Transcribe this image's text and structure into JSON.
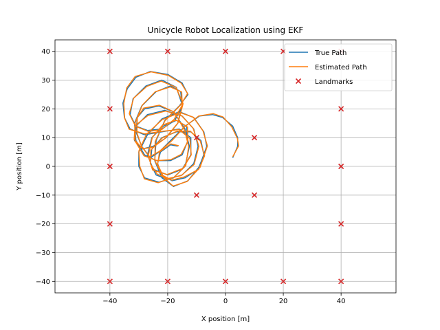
{
  "chart_data": {
    "type": "line",
    "title": "Unicycle Robot Localization using EKF",
    "xlabel": "X position [m]",
    "ylabel": "Y position [m]",
    "xlim": [
      -59,
      59
    ],
    "ylim": [
      -44,
      44
    ],
    "xticks": [
      -40,
      -20,
      0,
      20,
      40
    ],
    "yticks": [
      -40,
      -30,
      -20,
      -10,
      0,
      10,
      20,
      30,
      40
    ],
    "grid": true,
    "legend_position": "top-right",
    "colors": {
      "true_path": "#1f77b4",
      "estimated_path": "#ff7f0e",
      "landmarks": "#d62728"
    },
    "series": [
      {
        "name": "True Path",
        "kind": "line",
        "start": [
          2.5,
          3
        ],
        "approx_trajectory": [
          [
            2.5,
            3
          ],
          [
            4.2,
            7
          ],
          [
            4.2,
            10
          ],
          [
            2.5,
            14
          ],
          [
            -1,
            17
          ],
          [
            -4.5,
            18
          ],
          [
            -9,
            17.5
          ],
          [
            -14,
            14
          ],
          [
            -19,
            9
          ],
          [
            -23,
            5
          ],
          [
            -26,
            3
          ],
          [
            -29,
            7
          ],
          [
            -31,
            12
          ],
          [
            -30.5,
            17
          ],
          [
            -28,
            20
          ],
          [
            -23,
            21
          ],
          [
            -18,
            19
          ],
          [
            -14,
            13
          ],
          [
            -12.5,
            7
          ],
          [
            -14,
            0
          ],
          [
            -18,
            -4
          ],
          [
            -23,
            -5.5
          ],
          [
            -28,
            -4
          ],
          [
            -30,
            0
          ],
          [
            -30,
            5
          ],
          [
            -27,
            11
          ],
          [
            -22,
            16.5
          ],
          [
            -16,
            19
          ],
          [
            -11,
            17
          ],
          [
            -7.5,
            12
          ],
          [
            -6.5,
            7
          ],
          [
            -9,
            0
          ],
          [
            -13,
            -5
          ],
          [
            -18,
            -7
          ],
          [
            -22,
            -4
          ],
          [
            -24.5,
            2
          ],
          [
            -24,
            9
          ],
          [
            -21,
            16
          ],
          [
            -16,
            21
          ],
          [
            -13,
            25
          ],
          [
            -15,
            29
          ],
          [
            -20,
            32
          ],
          [
            -26,
            33
          ],
          [
            -31,
            31
          ],
          [
            -34,
            27
          ],
          [
            -35.5,
            22
          ],
          [
            -35,
            17
          ],
          [
            -33,
            13
          ],
          [
            -28,
            11
          ],
          [
            -22,
            12
          ],
          [
            -16,
            13
          ],
          [
            -12,
            10
          ],
          [
            -12,
            4
          ],
          [
            -15,
            -1
          ],
          [
            -20,
            -3
          ],
          [
            -25,
            -1
          ],
          [
            -27,
            4
          ],
          [
            -25.5,
            10
          ],
          [
            -21.5,
            14
          ],
          [
            -17,
            16
          ],
          [
            -13.5,
            14
          ],
          [
            -13,
            9
          ],
          [
            -15,
            4
          ],
          [
            -19,
            2
          ],
          [
            -24,
            2
          ],
          [
            -28,
            4
          ],
          [
            -31,
            9
          ],
          [
            -31.5,
            15
          ],
          [
            -29,
            21
          ],
          [
            -24,
            26
          ],
          [
            -19,
            28
          ],
          [
            -15.5,
            26
          ],
          [
            -15,
            21
          ],
          [
            -17.5,
            16
          ],
          [
            -22,
            13
          ],
          [
            -27,
            12.5
          ],
          [
            -31,
            14
          ],
          [
            -33,
            18
          ],
          [
            -32,
            23.5
          ],
          [
            -27.5,
            28
          ],
          [
            -22,
            30
          ],
          [
            -17,
            27.5
          ],
          [
            -15,
            21.5
          ],
          [
            -16.5,
            15
          ],
          [
            -20.5,
            10
          ],
          [
            -25,
            7
          ],
          [
            -29,
            6
          ],
          [
            -31.5,
            9
          ],
          [
            -31,
            14
          ],
          [
            -27,
            18
          ],
          [
            -21,
            19.5
          ],
          [
            -15,
            17.5
          ],
          [
            -11,
            13
          ],
          [
            -9.5,
            7
          ],
          [
            -11,
            1
          ],
          [
            -15,
            -3
          ],
          [
            -20,
            -4.5
          ],
          [
            -24,
            -3
          ],
          [
            -26,
            1
          ],
          [
            -25.5,
            6
          ],
          [
            -22,
            10
          ],
          [
            -17,
            12
          ],
          [
            -12,
            12
          ],
          [
            -8.5,
            9
          ],
          [
            -7.5,
            4
          ],
          [
            -9.5,
            -1
          ],
          [
            -14,
            -4
          ],
          [
            -18.5,
            -5
          ],
          [
            -22,
            -3
          ],
          [
            -23.5,
            1
          ],
          [
            -22.5,
            5
          ],
          [
            -19,
            7.5
          ],
          [
            -16.5,
            7
          ]
        ]
      },
      {
        "name": "Estimated Path",
        "kind": "line",
        "tracks": "True Path (near-identical, drawn on top)"
      },
      {
        "name": "Landmarks",
        "kind": "scatter",
        "marker": "x",
        "points": [
          [
            -40,
            40
          ],
          [
            -20,
            40
          ],
          [
            0,
            40
          ],
          [
            20,
            40
          ],
          [
            40,
            40
          ],
          [
            -40,
            20
          ],
          [
            40,
            20
          ],
          [
            -10,
            10
          ],
          [
            10,
            10
          ],
          [
            -40,
            0
          ],
          [
            40,
            0
          ],
          [
            -10,
            -10
          ],
          [
            10,
            -10
          ],
          [
            -40,
            -20
          ],
          [
            40,
            -20
          ],
          [
            -40,
            -40
          ],
          [
            -20,
            -40
          ],
          [
            0,
            -40
          ],
          [
            20,
            -40
          ],
          [
            40,
            -40
          ]
        ]
      }
    ]
  }
}
